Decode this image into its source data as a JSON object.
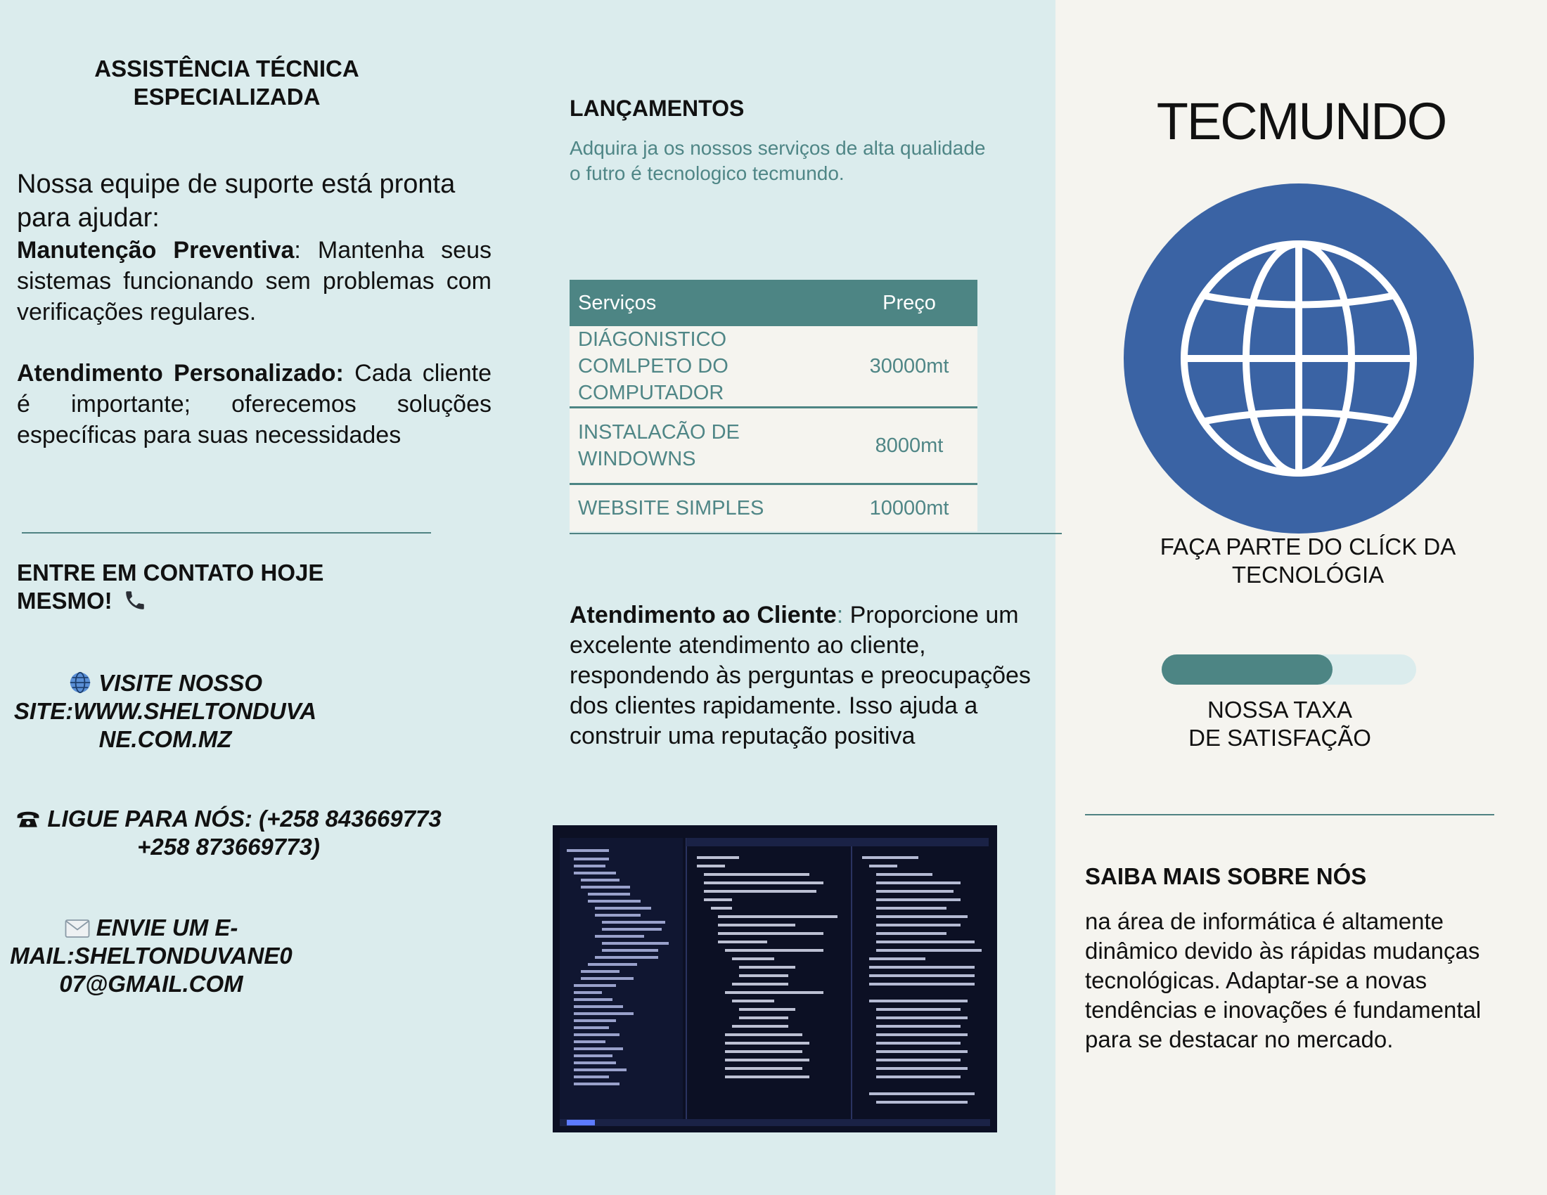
{
  "panel_left": {
    "title_line1": "ASSISTÊNCIA TÉCNICA",
    "title_line2": "ESPECIALIZADA",
    "intro": " Nossa equipe de suporte está pronta para ajudar:",
    "maintenance_label": "Manutenção Preventiva",
    "maintenance_text": ": Mantenha seus sistemas funcionando sem problemas com verificações regulares.",
    "personal_label": "Atendimento Personalizado:",
    "personal_text": " Cada cliente é importante; oferecemos soluções específicas para suas necessidades",
    "contact_heading_line1": " ENTRE EM CONTATO HOJE",
    "contact_heading_line2": "MESMO!",
    "site_line1": " VISITE NOSSO",
    "site_line2": "SITE:WWW.SHELTONDUVA",
    "site_line3": "NE.COM.MZ",
    "phone_line1": " LIGUE PARA NÓS: (+258 843669773",
    "phone_line2": "+258 873669773)",
    "email_line1": " ENVIE UM E-",
    "email_line2": "MAIL:SHELTONDUVANE0",
    "email_line3": "07@GMAIL.COM"
  },
  "panel_middle": {
    "launch_title": "LANÇAMENTOS",
    "launch_subtitle": "Adquira ja os nossos serviços de alta qualidade o futro é tecnologico tecmundo.",
    "table": {
      "headers": [
        "Serviços",
        "Preço"
      ],
      "rows": [
        [
          "DIÁGONISTICO COMLPETO DO COMPUTADOR",
          "30000mt"
        ],
        [
          "INSTALACÃO DE WINDOWNS",
          "8000mt"
        ],
        [
          "WEBSITE SIMPLES",
          "10000mt"
        ]
      ]
    },
    "service_label": "Atendimento ao Cliente",
    "service_colon": ":",
    "service_text": " Proporcione um excelente atendimento ao cliente, respondendo às perguntas e preocupações dos clientes rapidamente. Isso ajuda a construir uma reputação positiva"
  },
  "panel_right": {
    "brand": "TECMUNDO",
    "tagline_line1": "FAÇA PARTE DO CLÍCK DA",
    "tagline_line2": "TECNOLÓGIA",
    "satisfaction_fraction": 0.67,
    "satisfaction_line1": "NOSSA TAXA",
    "satisfaction_line2": "DE SATISFAÇÃO",
    "about_title": "SAIBA MAIS SOBRE NÓS",
    "about_text": "na área de informática é altamente dinâmico devido às rápidas mudanças tecnológicas. Adaptar-se a novas tendências e inovações é fundamental para se destacar no mercado."
  },
  "icons": {
    "phone": "phone-icon",
    "globe": "globe-icon",
    "telephone": "telephone-icon",
    "envelope": "envelope-icon"
  },
  "colors": {
    "left_background": "#dbeced",
    "right_background": "#f5f4ef",
    "teal_accent": "#4d8584",
    "globe_blue": "#3a63a4"
  }
}
